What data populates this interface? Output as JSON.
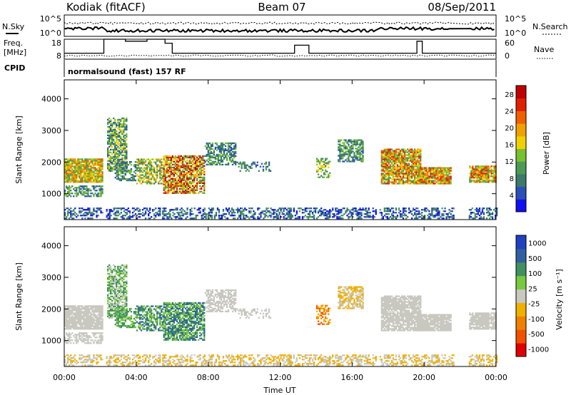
{
  "header": {
    "station": "Kodiak (fitACF)",
    "beam": "Beam 07",
    "date": "08/Sep/2011"
  },
  "top_panels": {
    "nsky_label": "N.Sky",
    "nsearch_label": "N.Search",
    "noise_ticks": [
      "10^5",
      "10^0"
    ],
    "freq_label": "Freq.",
    "freq_unit": "[MHz]",
    "freq_ticks": [
      "18",
      "8"
    ],
    "nave_label": "Nave",
    "nave_ticks": [
      "60",
      "0"
    ],
    "cpid_label": "CPID",
    "cpid_text": "normalsound (fast) 157 RF"
  },
  "colors": {
    "power": [
      "#1010f0",
      "#2a4fb8",
      "#3c7a6a",
      "#4d9a56",
      "#78c030",
      "#f0d000",
      "#f0a000",
      "#f06000",
      "#e02000",
      "#c00000"
    ],
    "velocity": [
      "#e00000",
      "#f05000",
      "#f08000",
      "#f0b000",
      "#c8c8c0",
      "#78c840",
      "#409060",
      "#3060a0",
      "#2040c0"
    ]
  },
  "chart_data": [
    {
      "type": "heatmap",
      "name": "power",
      "ylabel": "Slant Range [km]",
      "yticks": [
        1000,
        2000,
        3000,
        4000
      ],
      "ylim": [
        180,
        4600
      ],
      "x_ticks": [
        "00:00",
        "04:00",
        "08:00",
        "12:00",
        "16:00",
        "20:00",
        "00:00"
      ],
      "xlim_hours": [
        0,
        24
      ],
      "colorbar_label": "Power [dB]",
      "colorbar_ticks": [
        4,
        8,
        12,
        16,
        20,
        24,
        28
      ],
      "colorbar_range": [
        0,
        30
      ],
      "data_gaps_hours": [
        [
          2.15,
          2.3
        ],
        [
          17.3,
          17.5
        ],
        [
          21.6,
          22.4
        ]
      ]
    },
    {
      "type": "heatmap",
      "name": "velocity",
      "ylabel": "Slant Range [km]",
      "yticks": [
        1000,
        2000,
        3000,
        4000
      ],
      "ylim": [
        180,
        4600
      ],
      "x_ticks": [
        "00:00",
        "04:00",
        "08:00",
        "12:00",
        "16:00",
        "20:00",
        "00:00"
      ],
      "xlim_hours": [
        0,
        24
      ],
      "xlabel": "Time UT",
      "colorbar_label": "Velocity [m s⁻¹]",
      "colorbar_ticks": [
        "1000",
        "500",
        "100",
        "25",
        "-25",
        "-100",
        "-500",
        "-1000"
      ]
    }
  ]
}
